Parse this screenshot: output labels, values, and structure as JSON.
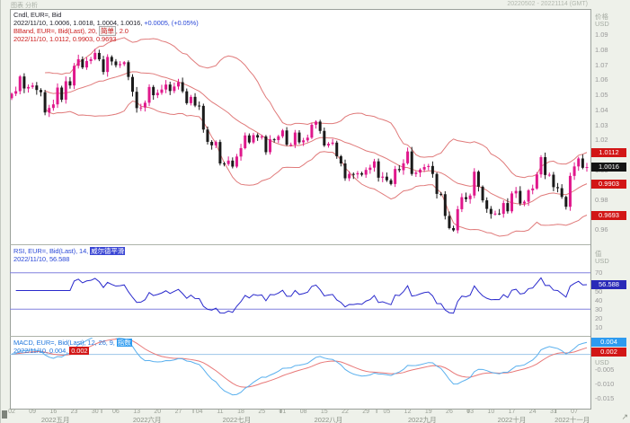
{
  "window": {
    "top_left": "图表 分析",
    "top_right": "20220502 - 20221114 (GMT)"
  },
  "main_panel": {
    "legend": {
      "line1": "Cndl, EUR=, Bid",
      "line2_date": "2022/11/10, ",
      "line2_ohlc": "1.0006, 1.0018, 1.0004, 1.0016, ",
      "line2_change": "+0.0005, (+0.05%)",
      "line3_prefix": "BBand, EUR=, Bid(Last), 20, ",
      "line3_param": "简单",
      "line3_suffix": ", 2.0",
      "line4": "2022/11/10, 1.0112, 0.9903, 0.9693"
    },
    "axis": {
      "title": "价格",
      "unit": "USD",
      "ticks": [
        "1.09",
        "1.08",
        "1.07",
        "1.06",
        "1.05",
        "1.04",
        "1.03",
        "1.02",
        "1.01",
        "1.00",
        "0.99",
        "0.98",
        "0.97",
        "0.96"
      ],
      "boxes": [
        {
          "label": "1.0112",
          "value": 1.0112,
          "bg": "#d21616"
        },
        {
          "label": "1.0016",
          "value": 1.0016,
          "bg": "#141414"
        },
        {
          "label": "0.9903",
          "value": 0.9903,
          "bg": "#d21616"
        },
        {
          "label": "0.9693",
          "value": 0.9693,
          "bg": "#d21616"
        }
      ]
    }
  },
  "rsi_panel": {
    "legend": {
      "line1_prefix": "RSI, EUR=, Bid(Last), 14, ",
      "line1_param": "威尔德平滑",
      "line2": "2022/11/10, 56.588"
    },
    "axis": {
      "title": "值",
      "unit": "USD",
      "ticks": [
        "70",
        "50",
        "40",
        "30",
        "20",
        "10"
      ],
      "box": {
        "label": "56.588",
        "value": 56.588,
        "bg": "#2a2ab8"
      }
    }
  },
  "macd_panel": {
    "legend": {
      "line1_prefix": "MACD, EUR=, Bid(Last), 12, 26, 9, ",
      "line1_param": "指数",
      "line2_prefix": "2022/11/10, 0.004, ",
      "line2_boxed": "0.002"
    },
    "axis": {
      "unit": "USD",
      "ticks": [
        "-0.005",
        "-0.010",
        "-0.015"
      ],
      "boxes": [
        {
          "label": "0.004",
          "bg": "#2d9bf0"
        },
        {
          "label": "0.002",
          "bg": "#d21616"
        }
      ]
    }
  },
  "time_axis": {
    "day_ticks": [
      {
        "i": 0,
        "label": "02"
      },
      {
        "i": 5,
        "label": "09"
      },
      {
        "i": 10,
        "label": "16"
      },
      {
        "i": 15,
        "label": "23"
      },
      {
        "i": 20,
        "label": "30"
      },
      {
        "i": 25,
        "label": "06"
      },
      {
        "i": 30,
        "label": "13"
      },
      {
        "i": 35,
        "label": "20"
      },
      {
        "i": 40,
        "label": "27"
      },
      {
        "i": 45,
        "label": "04"
      },
      {
        "i": 50,
        "label": "11"
      },
      {
        "i": 55,
        "label": "18"
      },
      {
        "i": 60,
        "label": "25"
      },
      {
        "i": 65,
        "label": "01"
      },
      {
        "i": 70,
        "label": "08"
      },
      {
        "i": 75,
        "label": "15"
      },
      {
        "i": 80,
        "label": "22"
      },
      {
        "i": 85,
        "label": "29"
      },
      {
        "i": 90,
        "label": "05"
      },
      {
        "i": 95,
        "label": "12"
      },
      {
        "i": 100,
        "label": "19"
      },
      {
        "i": 105,
        "label": "26"
      },
      {
        "i": 110,
        "label": "03"
      },
      {
        "i": 115,
        "label": "10"
      },
      {
        "i": 120,
        "label": "17"
      },
      {
        "i": 125,
        "label": "24"
      },
      {
        "i": 130,
        "label": "31"
      },
      {
        "i": 135,
        "label": "07"
      }
    ],
    "months": [
      {
        "i": 10.5,
        "label": "2022五月"
      },
      {
        "i": 32.5,
        "label": "2022六月"
      },
      {
        "i": 54,
        "label": "2022七月"
      },
      {
        "i": 76,
        "label": "2022八月"
      },
      {
        "i": 98.5,
        "label": "2022九月"
      },
      {
        "i": 120,
        "label": "2022十月"
      },
      {
        "i": 134.5,
        "label": "2022十一月"
      }
    ],
    "month_boundaries": [
      22,
      44,
      65,
      88,
      110,
      131
    ]
  },
  "colors": {
    "up": "#e0188c",
    "down": "#1a1a1a",
    "band": "#e07a7a",
    "rsi": "#2929cc",
    "rsi_level": "#8080dd",
    "macd": "#5ab0ee",
    "signal": "#e87878",
    "zero_line": "#9cc6e8",
    "plot_border": "#9aa09a",
    "divider": "#adb3aa"
  },
  "chart_data": [
    {
      "type": "candlestick",
      "title": "EUR= Bid, daily, with BBand(20, simple, 2.0)",
      "date_range": "2022/05/02 - 2022/11/10",
      "ylim": [
        0.9501,
        1.107
      ],
      "closes": [
        1.0505,
        1.0522,
        1.062,
        1.054,
        1.055,
        1.056,
        1.053,
        1.0515,
        1.038,
        1.041,
        1.0434,
        1.0546,
        1.0465,
        1.0588,
        1.056,
        1.0691,
        1.0735,
        1.068,
        1.0723,
        1.0735,
        1.0777,
        1.0734,
        1.065,
        1.075,
        1.072,
        1.0695,
        1.0702,
        1.0715,
        1.0617,
        1.0518,
        1.0409,
        1.0413,
        1.0445,
        1.055,
        1.0495,
        1.0511,
        1.0533,
        1.0566,
        1.0523,
        1.0553,
        1.0582,
        1.0521,
        1.0442,
        1.0484,
        1.0426,
        1.0424,
        1.0266,
        1.0184,
        1.0161,
        1.0183,
        1.004,
        1.0036,
        1.0059,
        1.0019,
        1.0086,
        1.0142,
        1.0227,
        1.018,
        1.0229,
        1.0213,
        1.022,
        1.0115,
        1.0201,
        1.0196,
        1.0221,
        1.026,
        1.0165,
        1.0165,
        1.0246,
        1.0181,
        1.0194,
        1.0212,
        1.0298,
        1.0319,
        1.0257,
        1.016,
        1.0171,
        1.0179,
        1.0088,
        1.004,
        0.9941,
        0.997,
        0.9967,
        0.9975,
        0.9965,
        0.9997,
        1.0012,
        1.0054,
        0.9945,
        0.9952,
        0.9928,
        0.9903,
        1.0003,
        0.9995,
        1.0041,
        1.012,
        0.997,
        0.9979,
        0.9999,
        1.0016,
        1.0023,
        0.997,
        0.9837,
        0.9835,
        0.969,
        0.9609,
        0.9594,
        0.9735,
        0.9815,
        0.9802,
        0.9826,
        0.9985,
        0.9885,
        0.9794,
        0.9737,
        0.9703,
        0.9706,
        0.9704,
        0.9776,
        0.9721,
        0.984,
        0.9857,
        0.9773,
        0.9785,
        0.9861,
        0.9873,
        0.9967,
        1.0082,
        0.9963,
        0.9965,
        0.9882,
        0.9875,
        0.9817,
        0.9751,
        0.9957,
        1.002,
        1.0073,
        1.0011,
        1.0016
      ],
      "last_candle": {
        "date": "2022/11/10",
        "open": 1.0006,
        "high": 1.0018,
        "low": 1.0004,
        "close": 1.0016,
        "change": "+0.0005",
        "change_pct": "+0.05%"
      },
      "bollinger": {
        "period": 20,
        "stdev_mult": 2.0,
        "last_upper": 1.0112,
        "last_mid": 0.9903,
        "last_lower": 0.9693
      }
    },
    {
      "type": "line",
      "title": "RSI 14, Wilder smoothing (威尔德平滑)",
      "derived_from": "closes",
      "ylim": [
        0,
        100
      ],
      "levels": [
        70,
        30
      ],
      "last_value": 56.588
    },
    {
      "type": "line",
      "title": "MACD 12, 26, 9, exponential (指数)",
      "derived_from": "closes",
      "ylim": [
        -0.0185,
        0.0058
      ],
      "zero_line": 0,
      "last_macd": 0.004,
      "last_signal": 0.002
    }
  ]
}
